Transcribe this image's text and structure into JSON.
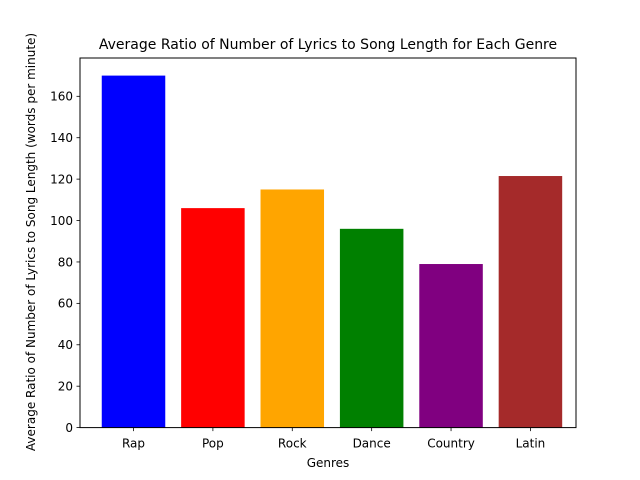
{
  "chart_data": {
    "type": "bar",
    "title": "Average Ratio of Number of Lyrics to Song Length for Each Genre",
    "xlabel": "Genres",
    "ylabel": "Average Ratio of Number of Lyrics to Song Length (words per minute)",
    "categories": [
      "Rap",
      "Pop",
      "Rock",
      "Dance",
      "Country",
      "Latin"
    ],
    "values": [
      170,
      106,
      115,
      96,
      79,
      121.5
    ],
    "colors": [
      "#0000ff",
      "#ff0000",
      "#ffa500",
      "#008000",
      "#800080",
      "#a52a2a"
    ],
    "yticks": [
      0,
      20,
      40,
      60,
      80,
      100,
      120,
      140,
      160
    ],
    "ylim": [
      0,
      178.5
    ],
    "grid": false,
    "legend": "none"
  }
}
